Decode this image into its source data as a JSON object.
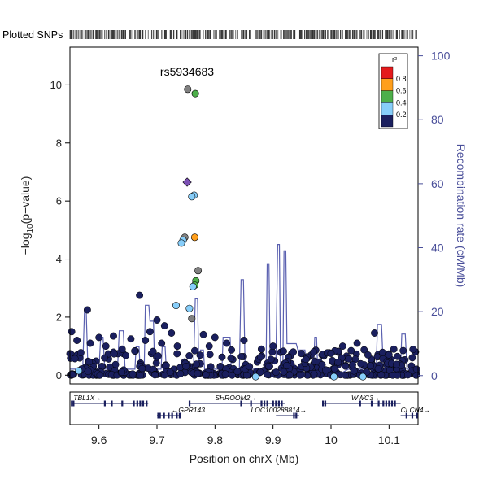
{
  "chart_data": {
    "type": "scatter",
    "title": "",
    "lead_snp": "rs5934683",
    "rug_label": "Plotted SNPs",
    "xlabel": "Position on chrX (Mb)",
    "ylabel": "−log10(p−value)",
    "ylabel_base": "−log",
    "ylabel_sub": "10",
    "ylabel_tail": "(p−value)",
    "y2label": "Recombination rate (cM/Mb)",
    "xlim": [
      9.55,
      10.15
    ],
    "ylim": [
      -0.3,
      11.3
    ],
    "y2lim": [
      -2.6,
      102.7
    ],
    "xticks": [
      9.6,
      9.7,
      9.8,
      9.9,
      10.0,
      10.1
    ],
    "xtick_labels": [
      "9.6",
      "9.7",
      "9.8",
      "9.9",
      "10",
      "10.1"
    ],
    "yticks": [
      0,
      2,
      4,
      6,
      8,
      10
    ],
    "y2ticks": [
      0,
      20,
      40,
      60,
      80,
      100
    ],
    "legend": {
      "title": "r²",
      "entries": [
        {
          "label": "0.8",
          "color": "#e41a1c"
        },
        {
          "label": "0.6",
          "color": "#ff9f1c"
        },
        {
          "label": "0.4",
          "color": "#4daf4a"
        },
        {
          "label": "0.2",
          "color": "#87cefa"
        },
        {
          "label": "",
          "color": "#1a1f5e"
        }
      ]
    },
    "colors": {
      "low": "#1a1f5e",
      "light": "#87cefa",
      "green": "#4daf4a",
      "orange": "#ff9f1c",
      "gray": "#808080",
      "purple": "#7b4fb3",
      "recomb": "#5a60b0",
      "axis2": "#4a4f9a"
    },
    "highlight_points": [
      {
        "x": 9.753,
        "y": 9.85,
        "c": "gray"
      },
      {
        "x": 9.766,
        "y": 9.7,
        "c": "green"
      },
      {
        "x": 9.752,
        "y": 6.65,
        "c": "purple",
        "shape": "diamond"
      },
      {
        "x": 9.764,
        "y": 6.2,
        "c": "light"
      },
      {
        "x": 9.76,
        "y": 6.15,
        "c": "light"
      },
      {
        "x": 9.748,
        "y": 4.75,
        "c": "gray"
      },
      {
        "x": 9.765,
        "y": 4.75,
        "c": "orange"
      },
      {
        "x": 9.745,
        "y": 4.65,
        "c": "light"
      },
      {
        "x": 9.742,
        "y": 4.55,
        "c": "light"
      },
      {
        "x": 9.771,
        "y": 3.6,
        "c": "gray"
      },
      {
        "x": 9.767,
        "y": 3.25,
        "c": "green"
      },
      {
        "x": 9.765,
        "y": 3.1,
        "c": "green"
      },
      {
        "x": 9.762,
        "y": 3.05,
        "c": "light"
      },
      {
        "x": 9.733,
        "y": 2.4,
        "c": "light"
      },
      {
        "x": 9.756,
        "y": 2.3,
        "c": "light"
      },
      {
        "x": 9.76,
        "y": 1.95,
        "c": "gray"
      },
      {
        "x": 9.565,
        "y": 0.15,
        "c": "light"
      },
      {
        "x": 9.87,
        "y": -0.05,
        "c": "light"
      },
      {
        "x": 10.005,
        "y": -0.05,
        "c": "light"
      },
      {
        "x": 10.055,
        "y": -0.05,
        "c": "light"
      }
    ],
    "tall_points": [
      {
        "x": 9.553,
        "y": 1.5
      },
      {
        "x": 9.562,
        "y": 1.2
      },
      {
        "x": 9.58,
        "y": 2.25
      },
      {
        "x": 9.585,
        "y": 1.1
      },
      {
        "x": 9.6,
        "y": 1.3
      },
      {
        "x": 9.612,
        "y": 1.0
      },
      {
        "x": 9.625,
        "y": 1.35
      },
      {
        "x": 9.64,
        "y": 0.9
      },
      {
        "x": 9.655,
        "y": 1.25
      },
      {
        "x": 9.67,
        "y": 2.75
      },
      {
        "x": 9.68,
        "y": 1.2
      },
      {
        "x": 9.688,
        "y": 1.5
      },
      {
        "x": 9.7,
        "y": 1.9
      },
      {
        "x": 9.708,
        "y": 1.1
      },
      {
        "x": 9.713,
        "y": 1.7
      },
      {
        "x": 9.725,
        "y": 1.45
      },
      {
        "x": 9.735,
        "y": 1.0
      },
      {
        "x": 9.78,
        "y": 1.4
      },
      {
        "x": 9.79,
        "y": 1.0
      },
      {
        "x": 9.8,
        "y": 1.3
      },
      {
        "x": 9.82,
        "y": 1.1
      },
      {
        "x": 9.85,
        "y": 1.2
      },
      {
        "x": 9.88,
        "y": 0.9
      },
      {
        "x": 9.9,
        "y": 1.0
      },
      {
        "x": 9.935,
        "y": 0.8
      },
      {
        "x": 9.97,
        "y": 0.8
      },
      {
        "x": 10.0,
        "y": 0.75
      },
      {
        "x": 10.02,
        "y": 1.0
      },
      {
        "x": 10.045,
        "y": 1.1
      },
      {
        "x": 10.075,
        "y": 1.45
      },
      {
        "x": 10.1,
        "y": 0.7
      },
      {
        "x": 10.14,
        "y": 0.6
      }
    ],
    "recomb_curve": [
      [
        9.55,
        2.0
      ],
      [
        9.572,
        2.0
      ],
      [
        9.575,
        20.0
      ],
      [
        9.578,
        20.0
      ],
      [
        9.581,
        2.0
      ],
      [
        9.6,
        2.0
      ],
      [
        9.603,
        12.0
      ],
      [
        9.607,
        12.0
      ],
      [
        9.61,
        2.0
      ],
      [
        9.632,
        2.0
      ],
      [
        9.635,
        14.0
      ],
      [
        9.642,
        14.0
      ],
      [
        9.645,
        2.0
      ],
      [
        9.662,
        2.0
      ],
      [
        9.664,
        9.0
      ],
      [
        9.669,
        9.0
      ],
      [
        9.671,
        2.0
      ],
      [
        9.678,
        2.0
      ],
      [
        9.68,
        22.0
      ],
      [
        9.686,
        22.0
      ],
      [
        9.688,
        17.0
      ],
      [
        9.694,
        17.0
      ],
      [
        9.696,
        2.0
      ],
      [
        9.707,
        2.0
      ],
      [
        9.709,
        9.0
      ],
      [
        9.714,
        9.0
      ],
      [
        9.716,
        2.0
      ],
      [
        9.763,
        2.0
      ],
      [
        9.766,
        24.0
      ],
      [
        9.77,
        24.0
      ],
      [
        9.772,
        3.0
      ],
      [
        9.775,
        8.0
      ],
      [
        9.78,
        8.0
      ],
      [
        9.782,
        2.0
      ],
      [
        9.812,
        2.0
      ],
      [
        9.814,
        12.0
      ],
      [
        9.826,
        12.0
      ],
      [
        9.828,
        2.0
      ],
      [
        9.842,
        2.0
      ],
      [
        9.845,
        30.0
      ],
      [
        9.849,
        30.0
      ],
      [
        9.852,
        2.0
      ],
      [
        9.888,
        2.0
      ],
      [
        9.89,
        35.0
      ],
      [
        9.893,
        35.0
      ],
      [
        9.895,
        4.0
      ],
      [
        9.905,
        4.0
      ],
      [
        9.908,
        41.0
      ],
      [
        9.911,
        41.0
      ],
      [
        9.913,
        3.0
      ],
      [
        9.917,
        3.0
      ],
      [
        9.919,
        39.0
      ],
      [
        9.922,
        39.0
      ],
      [
        9.924,
        10.0
      ],
      [
        9.94,
        10.0
      ],
      [
        9.943,
        8.0
      ],
      [
        9.955,
        8.0
      ],
      [
        9.958,
        2.0
      ],
      [
        9.97,
        2.0
      ],
      [
        9.972,
        12.0
      ],
      [
        9.975,
        12.0
      ],
      [
        9.977,
        2.0
      ],
      [
        9.99,
        2.0
      ],
      [
        10.0,
        1.0
      ],
      [
        10.02,
        1.0
      ],
      [
        10.03,
        2.0
      ],
      [
        10.078,
        2.0
      ],
      [
        10.08,
        16.0
      ],
      [
        10.087,
        16.0
      ],
      [
        10.09,
        3.0
      ],
      [
        10.12,
        3.0
      ],
      [
        10.122,
        13.0
      ],
      [
        10.128,
        13.0
      ],
      [
        10.131,
        2.0
      ],
      [
        10.15,
        2.0
      ]
    ],
    "genes": [
      {
        "name": "TBL1X",
        "start": 9.552,
        "end": 9.685,
        "row": 0,
        "strand": "+",
        "label_x": 9.556,
        "exons": [
          9.553,
          9.556,
          9.61,
          9.622,
          9.64,
          9.66,
          9.666,
          9.671,
          9.676,
          9.682
        ]
      },
      {
        "name": "SHROOM2",
        "start": 9.755,
        "end": 9.92,
        "row": 0,
        "strand": "+",
        "label_x": 9.8,
        "exons": [
          9.756,
          9.845,
          9.862,
          9.88,
          9.885,
          9.89,
          9.9,
          9.905,
          9.91,
          9.915
        ]
      },
      {
        "name": "WWC3",
        "start": 9.985,
        "end": 10.12,
        "row": 0,
        "strand": "+",
        "label_x": 10.035,
        "exons": [
          9.986,
          9.99,
          10.05,
          10.07,
          10.082,
          10.09,
          10.095,
          10.1,
          10.105,
          10.11
        ]
      },
      {
        "name": "GPR143",
        "start": 9.7,
        "end": 9.74,
        "row": 1,
        "strand": "-",
        "label_x": 9.725,
        "exons": [
          9.702,
          9.705,
          9.712,
          9.72,
          9.726,
          9.734,
          9.739
        ]
      },
      {
        "name": "LOC100288814",
        "start": 9.905,
        "end": 9.945,
        "row": 1,
        "strand": "+",
        "label_x": 9.862,
        "exons": [
          9.936,
          9.94
        ]
      },
      {
        "name": "CLCN4",
        "start": 10.12,
        "end": 10.15,
        "row": 1,
        "strand": "+",
        "label_x": 10.12,
        "exons": [
          10.13,
          10.14,
          10.148
        ]
      }
    ]
  }
}
